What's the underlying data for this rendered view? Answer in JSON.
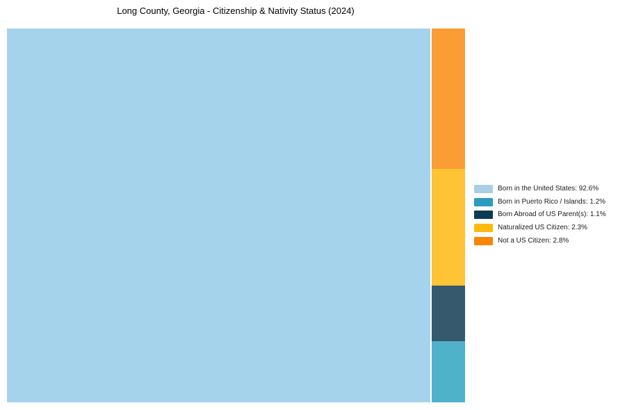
{
  "title": "Long County, Georgia - Citizenship & Nativity Status (2024)",
  "colors": {
    "background": "#ffffff",
    "title_text": "#000000",
    "legend_text": "#1a1a1a"
  },
  "chart_data": {
    "type": "treemap",
    "title": "Long County, Georgia - Citizenship & Nativity Status (2024)",
    "unit": "%",
    "legend_position": "right",
    "slices": [
      {
        "label": "Born in the United States",
        "value": 92.6,
        "block_color": "#a4d3eb",
        "legend_color": "#a9cfe2"
      },
      {
        "label": "Born in Puerto Rico / Islands",
        "value": 1.2,
        "block_color": "#4fb2c8",
        "legend_color": "#2d9cbe"
      },
      {
        "label": "Born Abroad of US Parent(s)",
        "value": 1.1,
        "block_color": "#36596d",
        "legend_color": "#0e3a54"
      },
      {
        "label": "Naturalized US Citizen",
        "value": 2.3,
        "block_color": "#fec436",
        "legend_color": "#fdb90c"
      },
      {
        "label": "Not a US Citizen",
        "value": 2.8,
        "block_color": "#fa9d35",
        "legend_color": "#f88606"
      }
    ],
    "legend_labels": [
      "Born in the United States: 92.6%",
      "Born in Puerto Rico / Islands: 1.2%",
      "Born Abroad of US Parent(s): 1.1%",
      "Naturalized US Citizen: 2.3%",
      "Not a US Citizen: 2.8%"
    ]
  }
}
